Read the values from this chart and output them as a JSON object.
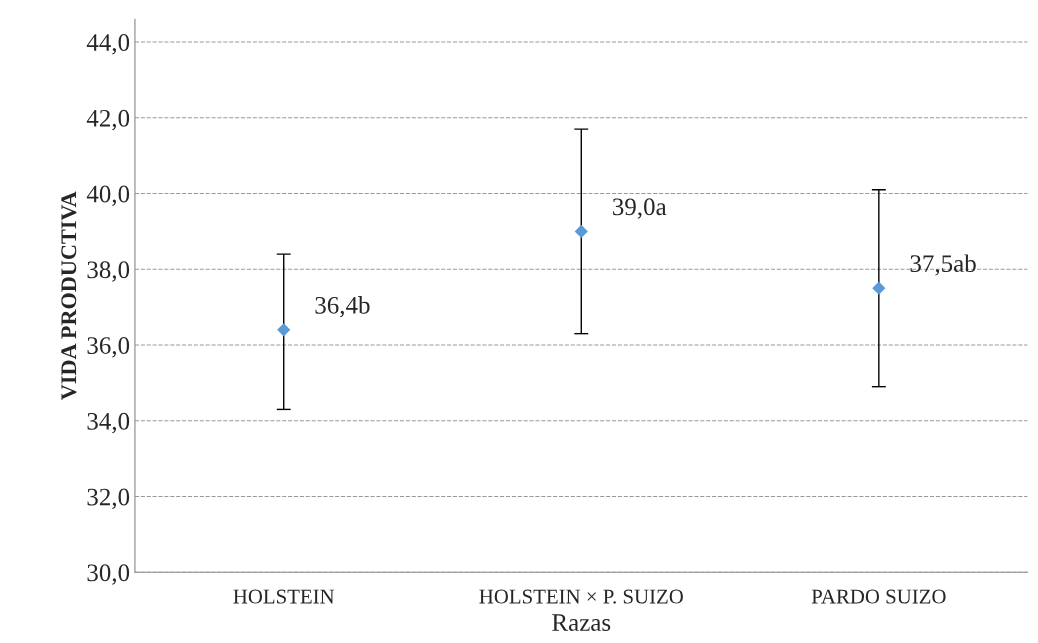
{
  "chart_data": {
    "type": "scatter",
    "xlabel": "Razas",
    "ylabel": "VIDA PRODUCTIVA",
    "categories": [
      "HOLSTEIN",
      "HOLSTEIN × P. SUIZO",
      "PARDO SUIZO"
    ],
    "values": [
      36.4,
      39.0,
      37.5
    ],
    "errors": [
      [
        34.3,
        38.4
      ],
      [
        36.3,
        41.7
      ],
      [
        34.9,
        40.1
      ]
    ],
    "value_labels": [
      "36,4b",
      "39,0a",
      "37,5ab"
    ],
    "color": "#5b9bd5",
    "marker": "diamond",
    "grid": "y",
    "ylim": [
      30,
      44.6
    ],
    "yticks": [
      {
        "value": 30,
        "label": "30,0"
      },
      {
        "value": 32,
        "label": "32,0"
      },
      {
        "value": 34,
        "label": "34,0"
      },
      {
        "value": 36,
        "label": "36,0"
      },
      {
        "value": 38,
        "label": "38,0"
      },
      {
        "value": 40,
        "label": "40,0"
      },
      {
        "value": 42,
        "label": "42,0"
      },
      {
        "value": 44,
        "label": "44,0"
      }
    ]
  }
}
